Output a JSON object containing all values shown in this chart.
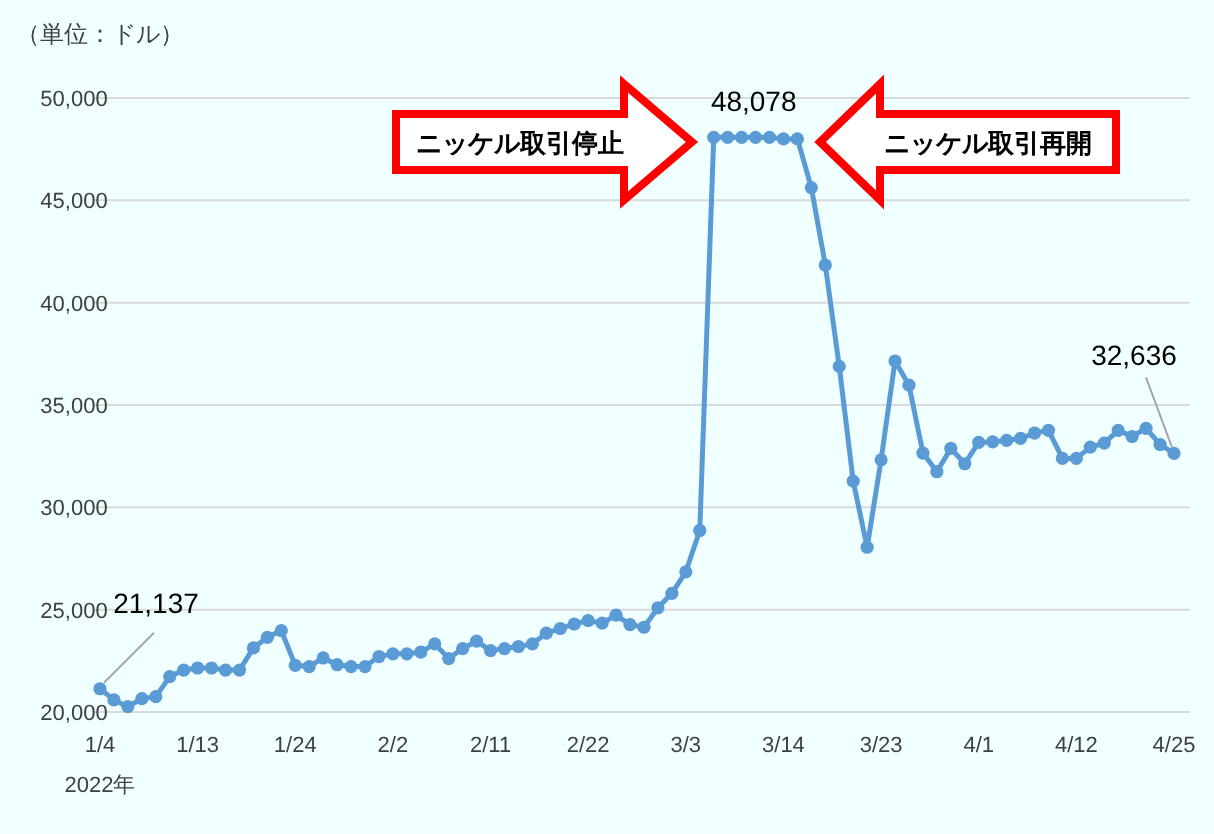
{
  "chart_data": {
    "type": "line",
    "annotations": [
      "（単位：ドル）",
      "2022年",
      "ニッケル取引停止",
      "ニッケル取引再開"
    ],
    "categories": [
      "1/4",
      null,
      null,
      null,
      null,
      null,
      null,
      "1/13",
      null,
      null,
      null,
      null,
      null,
      null,
      "1/24",
      null,
      null,
      null,
      null,
      null,
      null,
      "2/2",
      null,
      null,
      null,
      null,
      null,
      null,
      "2/11",
      null,
      null,
      null,
      null,
      null,
      null,
      "2/22",
      null,
      null,
      null,
      null,
      null,
      null,
      "3/3",
      null,
      null,
      null,
      null,
      null,
      null,
      "3/14",
      null,
      null,
      null,
      null,
      null,
      null,
      "3/23",
      null,
      null,
      null,
      null,
      null,
      null,
      "4/1",
      null,
      null,
      null,
      null,
      null,
      null,
      "4/12",
      null,
      null,
      null,
      null,
      null,
      null,
      "4/25"
    ],
    "series": [
      {
        "color": "#5b9bd5",
        "values": [
          21137,
          20590,
          20260,
          20650,
          20750,
          21730,
          22050,
          22150,
          22150,
          22050,
          22050,
          23130,
          23650,
          23980,
          22280,
          22220,
          22640,
          22310,
          22220,
          22220,
          22710,
          22840,
          22840,
          22930,
          23330,
          22610,
          23100,
          23460,
          23000,
          23100,
          23200,
          23330,
          23850,
          24080,
          24300,
          24470,
          24340,
          24730,
          24270,
          24140,
          25090,
          25800,
          26850,
          28870,
          48078,
          48078,
          48078,
          48078,
          48078,
          48000,
          48000,
          45620,
          41840,
          36890,
          31280,
          28050,
          32320,
          37150,
          35970,
          32650,
          31740,
          32880,
          32130,
          33170,
          33200,
          33270,
          33370,
          33630,
          33760,
          32390,
          32390,
          32940,
          33140,
          33760,
          33460,
          33860,
          33070,
          32636
        ],
        "value_labels": [
          "21,137",
          null,
          null,
          null,
          null,
          null,
          null,
          null,
          null,
          null,
          null,
          null,
          null,
          null,
          null,
          null,
          null,
          null,
          null,
          null,
          null,
          null,
          null,
          null,
          null,
          null,
          null,
          null,
          null,
          null,
          null,
          null,
          null,
          null,
          null,
          null,
          null,
          null,
          null,
          null,
          null,
          null,
          null,
          null,
          "48,078",
          null,
          null,
          null,
          null,
          null,
          null,
          null,
          null,
          null,
          null,
          null,
          null,
          null,
          null,
          null,
          null,
          null,
          null,
          null,
          null,
          null,
          null,
          null,
          null,
          null,
          null,
          null,
          null,
          null,
          null,
          null,
          null,
          "32,636"
        ]
      }
    ],
    "ylim": [
      20000,
      50000
    ],
    "yticks": [
      {
        "value": 20000,
        "label": "20,000"
      },
      {
        "value": 25000,
        "label": "25,000"
      },
      {
        "value": 30000,
        "label": "30,000"
      },
      {
        "value": 35000,
        "label": "35,000"
      },
      {
        "value": 40000,
        "label": "40,000"
      },
      {
        "value": 45000,
        "label": "45,000"
      },
      {
        "value": 50000,
        "label": "50,000"
      }
    ],
    "grid": "y",
    "marker": "circle",
    "line_style": "solid"
  }
}
